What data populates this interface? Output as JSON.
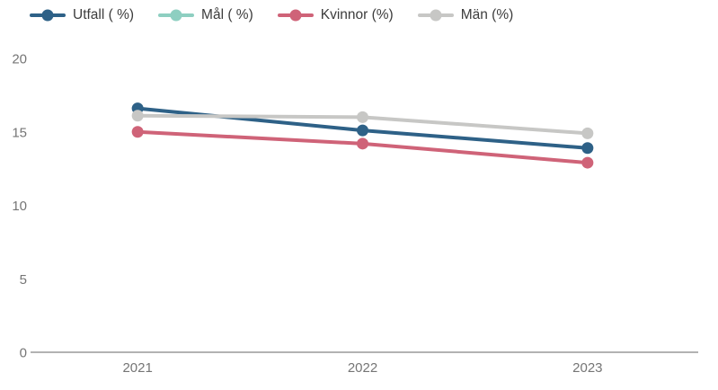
{
  "chart_data": {
    "type": "line",
    "title": "",
    "xlabel": "",
    "ylabel": "",
    "x": [
      "2021",
      "2022",
      "2023"
    ],
    "series": [
      {
        "name": "Utfall ( %)",
        "color": "#2e6187",
        "values": [
          16.6,
          15.1,
          13.9
        ]
      },
      {
        "name": "Mål ( %)",
        "color": "#8ecfc1",
        "values": [
          null,
          null,
          null
        ]
      },
      {
        "name": "Kvinnor (%)",
        "color": "#cf6378",
        "values": [
          15.0,
          14.2,
          12.9
        ]
      },
      {
        "name": "Män (%)",
        "color": "#c7c7c5",
        "values": [
          16.1,
          16.0,
          14.9
        ]
      }
    ],
    "yticks": [
      0,
      5,
      10,
      15,
      20
    ],
    "ylim": [
      0,
      20
    ],
    "grid": false,
    "legend_position": "top-left",
    "background_color": "#ffffff",
    "axis_color": "#b2b2b2",
    "tick_label_color": "#757575",
    "legend_text_color": "#3c3c3c"
  }
}
